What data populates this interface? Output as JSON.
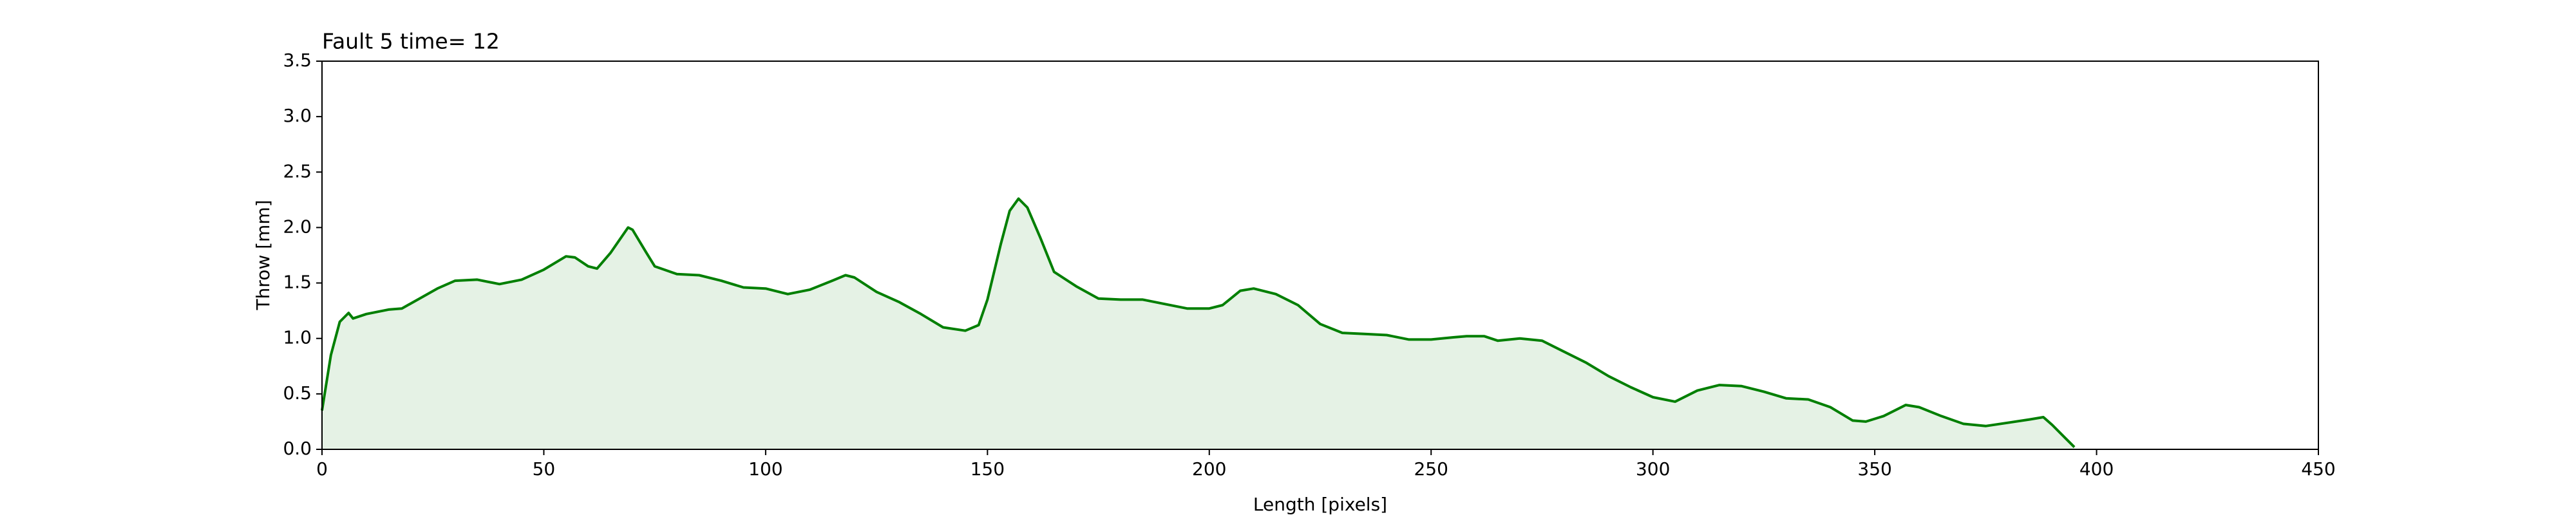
{
  "chart_data": {
    "type": "line",
    "title": "Fault 5 time= 12",
    "xlabel": "Length [pixels]",
    "ylabel": "Throw [mm]",
    "color": "#007f00",
    "fill": true,
    "x": [
      0,
      2,
      4,
      6,
      7,
      10,
      15,
      18,
      22,
      26,
      30,
      35,
      40,
      45,
      50,
      55,
      57,
      60,
      62,
      65,
      69,
      70,
      73,
      75,
      80,
      85,
      90,
      95,
      100,
      105,
      110,
      115,
      118,
      120,
      125,
      130,
      135,
      140,
      145,
      148,
      150,
      153,
      155,
      157,
      159,
      162,
      165,
      170,
      175,
      180,
      185,
      190,
      195,
      200,
      203,
      207,
      210,
      215,
      220,
      225,
      230,
      235,
      240,
      245,
      250,
      255,
      258,
      262,
      265,
      270,
      275,
      280,
      285,
      290,
      295,
      300,
      305,
      310,
      315,
      320,
      325,
      330,
      335,
      340,
      345,
      348,
      352,
      357,
      360,
      365,
      370,
      375,
      380,
      385,
      388,
      390,
      393,
      395
    ],
    "values": [
      0.35,
      0.85,
      1.15,
      1.23,
      1.18,
      1.22,
      1.26,
      1.27,
      1.36,
      1.45,
      1.52,
      1.53,
      1.49,
      1.53,
      1.62,
      1.74,
      1.73,
      1.65,
      1.63,
      1.77,
      2.0,
      1.98,
      1.78,
      1.65,
      1.58,
      1.57,
      1.52,
      1.46,
      1.45,
      1.4,
      1.44,
      1.52,
      1.57,
      1.55,
      1.42,
      1.33,
      1.22,
      1.1,
      1.07,
      1.12,
      1.35,
      1.85,
      2.15,
      2.26,
      2.18,
      1.9,
      1.6,
      1.47,
      1.36,
      1.35,
      1.35,
      1.31,
      1.27,
      1.27,
      1.3,
      1.43,
      1.45,
      1.4,
      1.3,
      1.13,
      1.05,
      1.04,
      1.03,
      0.99,
      0.99,
      1.01,
      1.02,
      1.02,
      0.98,
      1.0,
      0.98,
      0.88,
      0.78,
      0.66,
      0.56,
      0.47,
      0.43,
      0.53,
      0.58,
      0.57,
      0.52,
      0.46,
      0.45,
      0.38,
      0.26,
      0.25,
      0.3,
      0.4,
      0.38,
      0.3,
      0.23,
      0.21,
      0.24,
      0.27,
      0.29,
      0.22,
      0.1,
      0.02
    ],
    "xlim": [
      0,
      450
    ],
    "xticks": [
      0,
      50,
      100,
      150,
      200,
      250,
      300,
      350,
      400,
      450
    ],
    "ylim": [
      0,
      3.5
    ],
    "yticks": [
      {
        "value": 0,
        "label": "0.0"
      },
      {
        "value": 0.5,
        "label": "0.5"
      },
      {
        "value": 1,
        "label": "1.0"
      },
      {
        "value": 1.5,
        "label": "1.5"
      },
      {
        "value": 2,
        "label": "2.0"
      },
      {
        "value": 2.5,
        "label": "2.5"
      },
      {
        "value": 3,
        "label": "3.0"
      },
      {
        "value": 3.5,
        "label": "3.5"
      }
    ]
  }
}
